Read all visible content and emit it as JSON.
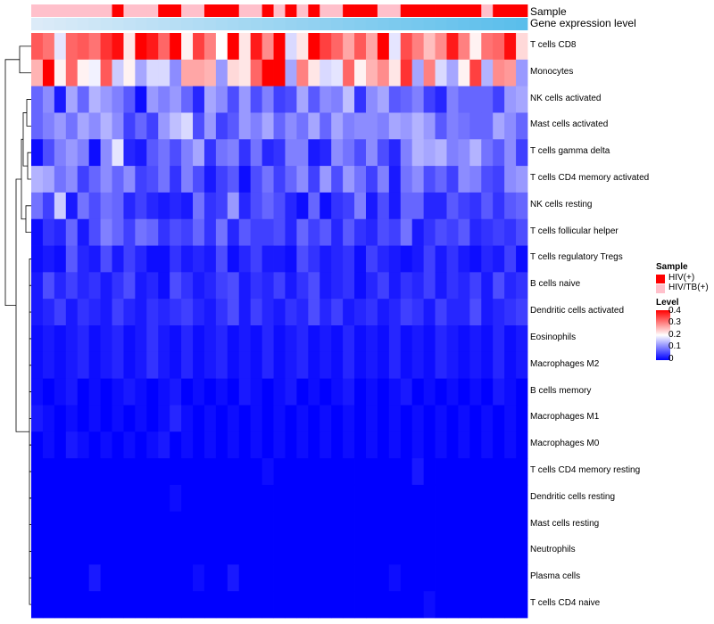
{
  "chart_data": {
    "type": "heatmap",
    "annotation_rows": [
      "Sample",
      "Gene expression level"
    ],
    "rows": [
      "T cells CD8",
      "Monocytes",
      "NK cells activated",
      "Mast cells activated",
      "T cells gamma delta",
      "T cells CD4 memory activated",
      "NK cells resting",
      "T cells follicular helper",
      "T cells regulatory  Tregs",
      "B cells naive",
      "Dendritic cells activated",
      "Eosinophils",
      "Macrophages M2",
      "B cells memory",
      "Macrophages M1",
      "Macrophages M0",
      "T cells CD4 memory resting",
      "Dendritic cells resting",
      "Mast cells resting",
      "Neutrophils",
      "Plasma cells",
      "T cells CD4 naive"
    ],
    "n_columns": 43,
    "sample_legend": {
      "title": "Sample",
      "entries": [
        {
          "label": "HIV(+)",
          "color": "#ff0000"
        },
        {
          "label": "HIV/TB(+)",
          "color": "#ffc0cb"
        }
      ]
    },
    "sample_groups": [
      "HIV/TB(+)",
      "HIV/TB(+)",
      "HIV/TB(+)",
      "HIV/TB(+)",
      "HIV/TB(+)",
      "HIV/TB(+)",
      "HIV/TB(+)",
      "HIV(+)",
      "HIV/TB(+)",
      "HIV/TB(+)",
      "HIV/TB(+)",
      "HIV(+)",
      "HIV(+)",
      "HIV/TB(+)",
      "HIV/TB(+)",
      "HIV(+)",
      "HIV(+)",
      "HIV(+)",
      "HIV/TB(+)",
      "HIV/TB(+)",
      "HIV(+)",
      "HIV/TB(+)",
      "HIV(+)",
      "HIV/TB(+)",
      "HIV(+)",
      "HIV/TB(+)",
      "HIV/TB(+)",
      "HIV(+)",
      "HIV(+)",
      "HIV(+)",
      "HIV/TB(+)",
      "HIV/TB(+)",
      "HIV(+)",
      "HIV(+)",
      "HIV(+)",
      "HIV(+)",
      "HIV(+)",
      "HIV(+)",
      "HIV(+)",
      "HIV/TB(+)",
      "HIV(+)",
      "HIV(+)",
      "HIV(+)"
    ],
    "level_legend": {
      "title": "Level",
      "ticks": [
        0.4,
        0.3,
        0.2,
        0.1,
        0
      ],
      "range": [
        0,
        0.4
      ],
      "colors": [
        "#0000ff",
        "#ffffff",
        "#ff0000"
      ]
    },
    "values": [
      [
        0.33,
        0.31,
        0.18,
        0.32,
        0.33,
        0.31,
        0.36,
        0.39,
        0.22,
        0.4,
        0.38,
        0.32,
        0.4,
        0.21,
        0.35,
        0.3,
        0.2,
        0.4,
        0.22,
        0.38,
        0.29,
        0.4,
        0.17,
        0.22,
        0.4,
        0.35,
        0.32,
        0.27,
        0.33,
        0.27,
        0.41,
        0.18,
        0.34,
        0.3,
        0.25,
        0.29,
        0.38,
        0.3,
        0.21,
        0.31,
        0.32,
        0.39,
        0.23
      ],
      [
        0.26,
        0.4,
        0.21,
        0.32,
        0.21,
        0.19,
        0.33,
        0.16,
        0.21,
        0.13,
        0.17,
        0.17,
        0.11,
        0.27,
        0.27,
        0.26,
        0.12,
        0.23,
        0.22,
        0.32,
        0.4,
        0.4,
        0.13,
        0.3,
        0.22,
        0.17,
        0.18,
        0.32,
        0.21,
        0.26,
        0.29,
        0.22,
        0.36,
        0.13,
        0.3,
        0.17,
        0.13,
        0.21,
        0.35,
        0.14,
        0.29,
        0.28,
        0.12
      ],
      [
        0.08,
        0.11,
        0.02,
        0.13,
        0.08,
        0.14,
        0.12,
        0.1,
        0.07,
        0.01,
        0.12,
        0.1,
        0.12,
        0.08,
        0.03,
        0.13,
        0.11,
        0.06,
        0.12,
        0.06,
        0.1,
        0.05,
        0.06,
        0.13,
        0.07,
        0.11,
        0.1,
        0.15,
        0.04,
        0.11,
        0.13,
        0.07,
        0.08,
        0.1,
        0.05,
        0.03,
        0.1,
        0.08,
        0.08,
        0.08,
        0.05,
        0.12,
        0.13
      ],
      [
        0.08,
        0.1,
        0.12,
        0.09,
        0.13,
        0.11,
        0.14,
        0.11,
        0.05,
        0.08,
        0.05,
        0.12,
        0.15,
        0.17,
        0.06,
        0.12,
        0.05,
        0.07,
        0.12,
        0.1,
        0.13,
        0.08,
        0.11,
        0.09,
        0.13,
        0.08,
        0.13,
        0.1,
        0.11,
        0.11,
        0.1,
        0.13,
        0.12,
        0.14,
        0.12,
        0.07,
        0.1,
        0.09,
        0.08,
        0.08,
        0.13,
        0.11,
        0.08
      ],
      [
        0.01,
        0.06,
        0.1,
        0.12,
        0.1,
        0.01,
        0.11,
        0.18,
        0.03,
        0.02,
        0.07,
        0.09,
        0.06,
        0.1,
        0.13,
        0.04,
        0.09,
        0.1,
        0.04,
        0.09,
        0.03,
        0.04,
        0.1,
        0.1,
        0.02,
        0.03,
        0.11,
        0.09,
        0.06,
        0.11,
        0.06,
        0.03,
        0.1,
        0.14,
        0.13,
        0.14,
        0.1,
        0.11,
        0.14,
        0.09,
        0.07,
        0.11,
        0.05
      ],
      [
        0.14,
        0.13,
        0.09,
        0.11,
        0.05,
        0.08,
        0.11,
        0.08,
        0.11,
        0.05,
        0.06,
        0.09,
        0.04,
        0.1,
        0.06,
        0.02,
        0.05,
        0.07,
        0.01,
        0.06,
        0.09,
        0.05,
        0.08,
        0.11,
        0.05,
        0.12,
        0.06,
        0.12,
        0.09,
        0.05,
        0.1,
        0.02,
        0.09,
        0.11,
        0.06,
        0.08,
        0.05,
        0.11,
        0.1,
        0.06,
        0.05,
        0.11,
        0.12
      ],
      [
        0.09,
        0.05,
        0.16,
        0.02,
        0.09,
        0.06,
        0.09,
        0.08,
        0.03,
        0.05,
        0.03,
        0.02,
        0.03,
        0.02,
        0.09,
        0.04,
        0.05,
        0.12,
        0.03,
        0.06,
        0.08,
        0.06,
        0.03,
        0.01,
        0.08,
        0.01,
        0.04,
        0.05,
        0.1,
        0.02,
        0.06,
        0.02,
        0.08,
        0.08,
        0.03,
        0.03,
        0.07,
        0.05,
        0.04,
        0.07,
        0.04,
        0.07,
        0.08
      ],
      [
        0.01,
        0.04,
        0.03,
        0.08,
        0.02,
        0.06,
        0.1,
        0.08,
        0.05,
        0.09,
        0.08,
        0.04,
        0.06,
        0.05,
        0.08,
        0.04,
        0.09,
        0.03,
        0.07,
        0.05,
        0.05,
        0.06,
        0.03,
        0.08,
        0.05,
        0.07,
        0.03,
        0.07,
        0.04,
        0.03,
        0.06,
        0.05,
        0.09,
        0.02,
        0.04,
        0.06,
        0.05,
        0.07,
        0.03,
        0.04,
        0.05,
        0.04,
        0.06
      ],
      [
        0.01,
        0.02,
        0.01,
        0.07,
        0.03,
        0.02,
        0.06,
        0.02,
        0.05,
        0.03,
        0.01,
        0.01,
        0.04,
        0.02,
        0.03,
        0.02,
        0.06,
        0.01,
        0.03,
        0.05,
        0.02,
        0.02,
        0.01,
        0.06,
        0.04,
        0.02,
        0.03,
        0.04,
        0.01,
        0.05,
        0.03,
        0.02,
        0.01,
        0.02,
        0.05,
        0.02,
        0.04,
        0.02,
        0.01,
        0.03,
        0.02,
        0.05,
        0.01
      ],
      [
        0.02,
        0.06,
        0.03,
        0.05,
        0.03,
        0.04,
        0.02,
        0.04,
        0.06,
        0.02,
        0.03,
        0.01,
        0.06,
        0.04,
        0.02,
        0.03,
        0.05,
        0.06,
        0.02,
        0.04,
        0.03,
        0.05,
        0.02,
        0.04,
        0.06,
        0.02,
        0.03,
        0.04,
        0.01,
        0.03,
        0.05,
        0.02,
        0.04,
        0.03,
        0.05,
        0.02,
        0.04,
        0.03,
        0.05,
        0.02,
        0.06,
        0.03,
        0.04
      ],
      [
        0.02,
        0.03,
        0.05,
        0.02,
        0.04,
        0.03,
        0.02,
        0.05,
        0.03,
        0.02,
        0.04,
        0.03,
        0.04,
        0.05,
        0.03,
        0.02,
        0.04,
        0.06,
        0.02,
        0.05,
        0.03,
        0.02,
        0.04,
        0.03,
        0.06,
        0.03,
        0.05,
        0.02,
        0.03,
        0.04,
        0.02,
        0.03,
        0.05,
        0.04,
        0.02,
        0.05,
        0.03,
        0.03,
        0.06,
        0.02,
        0.03,
        0.04,
        0.05
      ],
      [
        0.01,
        0.02,
        0.01,
        0.02,
        0.03,
        0.01,
        0.02,
        0.03,
        0.01,
        0.02,
        0.04,
        0.02,
        0.01,
        0.03,
        0.01,
        0.02,
        0.03,
        0.01,
        0.02,
        0.01,
        0.03,
        0.01,
        0.02,
        0.03,
        0.01,
        0.02,
        0.01,
        0.03,
        0.01,
        0.02,
        0.01,
        0.03,
        0.01,
        0.02,
        0.01,
        0.03,
        0.02,
        0.01,
        0.02,
        0.01,
        0.03,
        0.01,
        0.02
      ],
      [
        0.01,
        0.02,
        0.01,
        0.02,
        0.03,
        0.01,
        0.02,
        0.03,
        0.01,
        0.02,
        0.04,
        0.02,
        0.01,
        0.03,
        0.01,
        0.02,
        0.03,
        0.01,
        0.02,
        0.01,
        0.03,
        0.01,
        0.02,
        0.03,
        0.01,
        0.02,
        0.01,
        0.03,
        0.01,
        0.02,
        0.01,
        0.03,
        0.01,
        0.02,
        0.01,
        0.03,
        0.02,
        0.01,
        0.02,
        0.01,
        0.03,
        0.01,
        0.02
      ],
      [
        0.01,
        0.0,
        0.01,
        0.02,
        0.0,
        0.01,
        0.0,
        0.01,
        0.02,
        0.01,
        0.0,
        0.01,
        0.02,
        0.0,
        0.01,
        0.0,
        0.01,
        0.0,
        0.02,
        0.01,
        0.0,
        0.01,
        0.02,
        0.0,
        0.01,
        0.0,
        0.01,
        0.02,
        0.0,
        0.01,
        0.0,
        0.01,
        0.02,
        0.0,
        0.01,
        0.0,
        0.01,
        0.0,
        0.01,
        0.0,
        0.02,
        0.01,
        0.0
      ],
      [
        0.02,
        0.01,
        0.0,
        0.01,
        0.0,
        0.01,
        0.0,
        0.01,
        0.0,
        0.01,
        0.0,
        0.01,
        0.03,
        0.01,
        0.0,
        0.01,
        0.0,
        0.01,
        0.0,
        0.01,
        0.0,
        0.01,
        0.0,
        0.01,
        0.0,
        0.01,
        0.0,
        0.01,
        0.0,
        0.01,
        0.0,
        0.01,
        0.0,
        0.01,
        0.0,
        0.01,
        0.0,
        0.01,
        0.0,
        0.01,
        0.0,
        0.01,
        0.0
      ],
      [
        0.0,
        0.01,
        0.0,
        0.02,
        0.01,
        0.0,
        0.01,
        0.0,
        0.01,
        0.0,
        0.01,
        0.02,
        0.0,
        0.01,
        0.0,
        0.01,
        0.0,
        0.01,
        0.0,
        0.01,
        0.0,
        0.01,
        0.0,
        0.01,
        0.0,
        0.01,
        0.0,
        0.01,
        0.0,
        0.01,
        0.0,
        0.01,
        0.0,
        0.01,
        0.0,
        0.01,
        0.0,
        0.01,
        0.0,
        0.01,
        0.0,
        0.01,
        0.0
      ],
      [
        0.0,
        0.0,
        0.0,
        0.0,
        0.0,
        0.0,
        0.0,
        0.0,
        0.0,
        0.0,
        0.0,
        0.0,
        0.0,
        0.0,
        0.0,
        0.0,
        0.0,
        0.0,
        0.0,
        0.0,
        0.01,
        0.0,
        0.0,
        0.0,
        0.0,
        0.0,
        0.0,
        0.0,
        0.0,
        0.0,
        0.0,
        0.0,
        0.0,
        0.02,
        0.0,
        0.0,
        0.0,
        0.0,
        0.0,
        0.0,
        0.0,
        0.0,
        0.0
      ],
      [
        0.0,
        0.0,
        0.0,
        0.0,
        0.0,
        0.0,
        0.0,
        0.0,
        0.0,
        0.0,
        0.0,
        0.0,
        0.01,
        0.0,
        0.0,
        0.0,
        0.0,
        0.0,
        0.0,
        0.0,
        0.0,
        0.0,
        0.0,
        0.0,
        0.0,
        0.0,
        0.0,
        0.0,
        0.0,
        0.0,
        0.0,
        0.0,
        0.0,
        0.0,
        0.0,
        0.0,
        0.0,
        0.0,
        0.0,
        0.0,
        0.0,
        0.0,
        0.0
      ],
      [
        0.0,
        0.0,
        0.0,
        0.0,
        0.0,
        0.0,
        0.0,
        0.0,
        0.0,
        0.0,
        0.0,
        0.0,
        0.0,
        0.0,
        0.0,
        0.0,
        0.0,
        0.0,
        0.0,
        0.0,
        0.0,
        0.0,
        0.0,
        0.0,
        0.0,
        0.0,
        0.0,
        0.0,
        0.0,
        0.0,
        0.0,
        0.0,
        0.0,
        0.0,
        0.0,
        0.0,
        0.0,
        0.0,
        0.0,
        0.0,
        0.0,
        0.0,
        0.0
      ],
      [
        0.0,
        0.0,
        0.0,
        0.0,
        0.0,
        0.0,
        0.0,
        0.0,
        0.0,
        0.0,
        0.0,
        0.0,
        0.0,
        0.0,
        0.0,
        0.0,
        0.0,
        0.0,
        0.0,
        0.0,
        0.0,
        0.0,
        0.0,
        0.0,
        0.0,
        0.0,
        0.0,
        0.0,
        0.0,
        0.0,
        0.0,
        0.0,
        0.0,
        0.0,
        0.0,
        0.0,
        0.0,
        0.0,
        0.0,
        0.0,
        0.0,
        0.0,
        0.0
      ],
      [
        0.0,
        0.0,
        0.0,
        0.0,
        0.0,
        0.02,
        0.0,
        0.0,
        0.0,
        0.0,
        0.0,
        0.0,
        0.0,
        0.0,
        0.01,
        0.0,
        0.0,
        0.02,
        0.0,
        0.0,
        0.0,
        0.0,
        0.0,
        0.0,
        0.0,
        0.0,
        0.0,
        0.0,
        0.0,
        0.0,
        0.0,
        0.01,
        0.0,
        0.0,
        0.0,
        0.0,
        0.0,
        0.0,
        0.0,
        0.0,
        0.0,
        0.0,
        0.0
      ],
      [
        0.0,
        0.0,
        0.0,
        0.0,
        0.0,
        0.0,
        0.0,
        0.0,
        0.0,
        0.0,
        0.0,
        0.0,
        0.0,
        0.0,
        0.0,
        0.0,
        0.0,
        0.0,
        0.0,
        0.0,
        0.0,
        0.0,
        0.0,
        0.0,
        0.0,
        0.0,
        0.0,
        0.0,
        0.0,
        0.0,
        0.0,
        0.0,
        0.0,
        0.0,
        0.01,
        0.0,
        0.0,
        0.0,
        0.0,
        0.0,
        0.0,
        0.0,
        0.0
      ]
    ]
  }
}
